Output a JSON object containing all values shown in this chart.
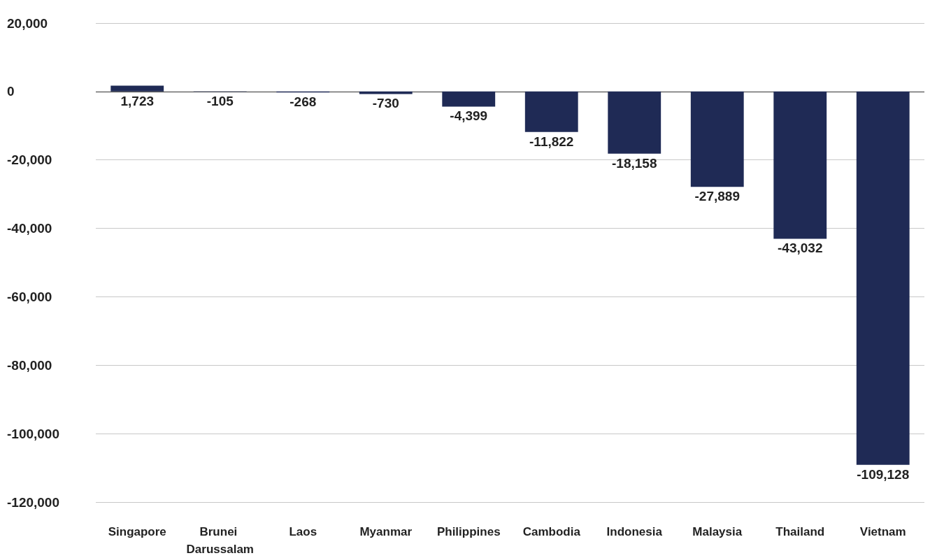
{
  "chart_data": {
    "type": "bar",
    "categories": [
      "Singapore",
      "Brunei Darussalam",
      "Laos",
      "Myanmar",
      "Philippines",
      "Cambodia",
      "Indonesia",
      "Malaysia",
      "Thailand",
      "Vietnam"
    ],
    "values": [
      1723,
      -105,
      -268,
      -730,
      -4399,
      -11822,
      -18158,
      -27889,
      -43032,
      -109128
    ],
    "color": "#1f2a55",
    "ylim": [
      -120000,
      20000
    ],
    "yticks": [
      {
        "value": -120000,
        "label": "-120,000"
      },
      {
        "value": -100000,
        "label": "-100,000"
      },
      {
        "value": -80000,
        "label": "-80,000"
      },
      {
        "value": -60000,
        "label": "-60,000"
      },
      {
        "value": -40000,
        "label": "-40,000"
      },
      {
        "value": -20000,
        "label": "-20,000"
      },
      0,
      {
        "value": 20000,
        "label": "20,000"
      }
    ],
    "value_labels": [
      "1,723",
      "-105",
      "-268",
      "-730",
      "-4,399",
      "-11,822",
      "-18,158",
      "-27,889",
      "-43,032",
      "-109,128"
    ],
    "grid": "y"
  }
}
